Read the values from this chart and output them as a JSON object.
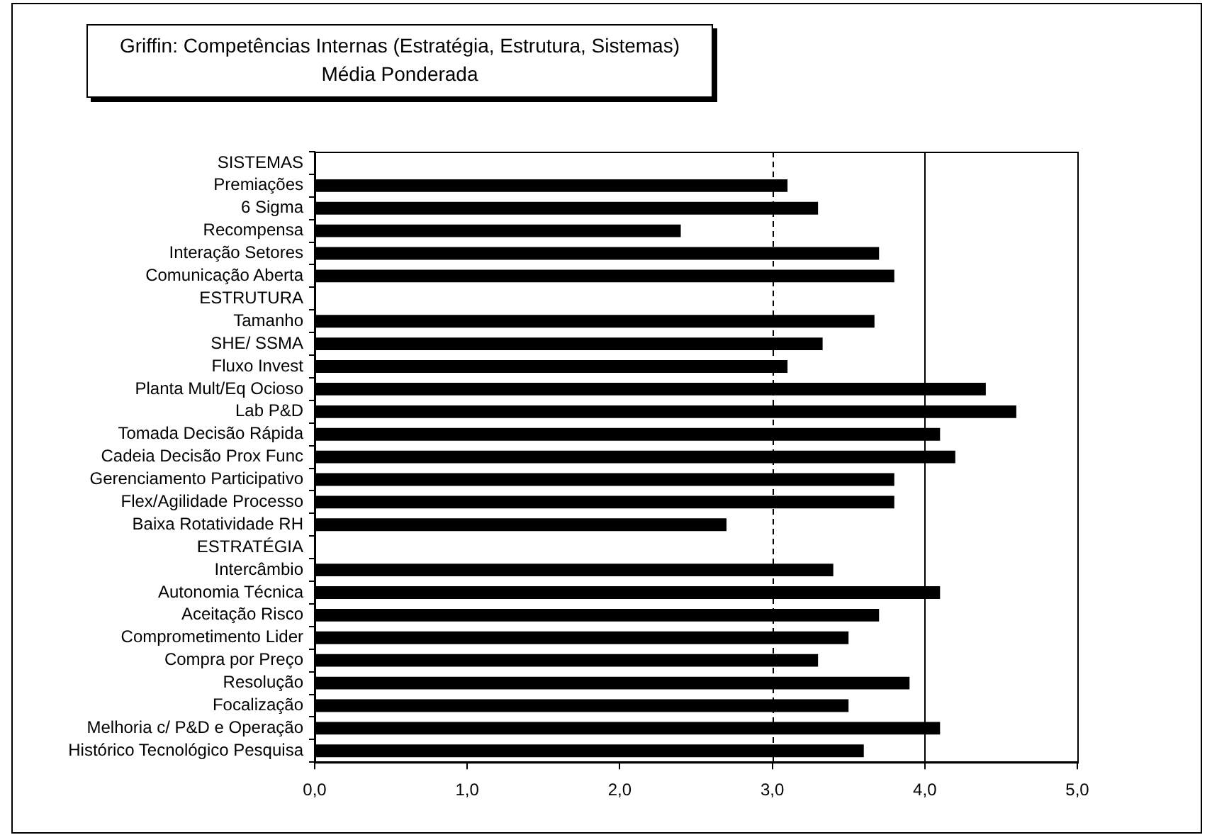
{
  "chart_data": {
    "type": "bar",
    "orientation": "horizontal",
    "title": "Griffin: Competências Internas (Estratégia, Estrutura, Sistemas)",
    "subtitle": "Média Ponderada",
    "categories": [
      "SISTEMAS",
      "Premiações",
      "6 Sigma",
      "Recompensa",
      "Interação Setores",
      "Comunicação Aberta",
      "ESTRUTURA",
      "Tamanho",
      "SHE/ SSMA",
      "Fluxo Invest",
      "Planta Mult/Eq Ocioso",
      "Lab P&D",
      "Tomada Decisão Rápida",
      "Cadeia Decisão Prox Func",
      "Gerenciamento Participativo",
      "Flex/Agilidade Processo",
      "Baixa Rotatividade RH",
      "ESTRATÉGIA",
      "Intercâmbio",
      "Autonomia Técnica",
      "Aceitação Risco",
      "Comprometimento Lider",
      "Compra por Preço",
      "Resolução",
      "Focalização",
      "Melhoria c/ P&D e Operação",
      "Histórico Tecnológico Pesquisa"
    ],
    "values": [
      null,
      3.1,
      3.3,
      2.4,
      3.7,
      3.8,
      null,
      3.67,
      3.33,
      3.1,
      4.4,
      4.6,
      4.1,
      4.2,
      3.8,
      3.8,
      2.7,
      null,
      3.4,
      4.1,
      3.7,
      3.5,
      3.3,
      3.9,
      3.5,
      4.1,
      3.6
    ],
    "color": "#000000",
    "xlim": [
      0,
      5
    ],
    "xticks": [
      {
        "value": 0,
        "label": "0,0"
      },
      {
        "value": 1,
        "label": "1,0"
      },
      {
        "value": 2,
        "label": "2,0"
      },
      {
        "value": 3,
        "label": "3,0"
      },
      {
        "value": 4,
        "label": "4,0"
      },
      {
        "value": 5,
        "label": "5,0"
      }
    ],
    "ref_lines": [
      {
        "axis": "x",
        "value": 3,
        "color": "#000000",
        "line_style": "dashed"
      },
      {
        "axis": "x",
        "value": 4,
        "color": "#000000",
        "line_style": "solid"
      }
    ]
  }
}
